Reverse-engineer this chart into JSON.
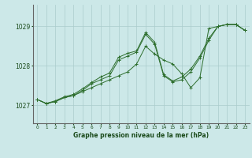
{
  "title": "Graphe pression niveau de la mer (hPa)",
  "bg_color": "#cce8e8",
  "grid_color": "#aacccc",
  "line_color": "#2d6e2d",
  "marker_color": "#2d6e2d",
  "ylabel_ticks": [
    1027,
    1028,
    1029
  ],
  "xlim": [
    -0.5,
    23.5
  ],
  "ylim": [
    1026.55,
    1029.55
  ],
  "series": [
    [
      1027.15,
      1027.05,
      1027.1,
      1027.2,
      1027.25,
      1027.35,
      1027.45,
      1027.55,
      1027.65,
      1027.75,
      1027.85,
      1028.05,
      1028.5,
      1028.3,
      1028.15,
      1028.05,
      1027.8,
      1027.45,
      1027.7,
      1028.95,
      1029.0,
      1029.05,
      1029.05,
      1028.9
    ],
    [
      1027.15,
      1027.05,
      1027.1,
      1027.2,
      1027.25,
      1027.38,
      1027.55,
      1027.65,
      1027.75,
      1028.15,
      1028.25,
      1028.35,
      1028.8,
      1028.55,
      1027.75,
      1027.6,
      1027.65,
      1027.85,
      1028.2,
      1028.65,
      1029.0,
      1029.05,
      1029.05,
      1028.9
    ],
    [
      1027.15,
      1027.05,
      1027.12,
      1027.22,
      1027.28,
      1027.42,
      1027.58,
      1027.72,
      1027.82,
      1028.22,
      1028.32,
      1028.38,
      1028.85,
      1028.6,
      1027.78,
      1027.62,
      1027.72,
      1027.92,
      1028.25,
      1028.7,
      1029.0,
      1029.05,
      1029.05,
      1028.9
    ]
  ],
  "xlabel_ticks": [
    0,
    1,
    2,
    3,
    4,
    5,
    6,
    7,
    8,
    9,
    10,
    11,
    12,
    13,
    14,
    15,
    16,
    17,
    18,
    19,
    20,
    21,
    22,
    23
  ]
}
